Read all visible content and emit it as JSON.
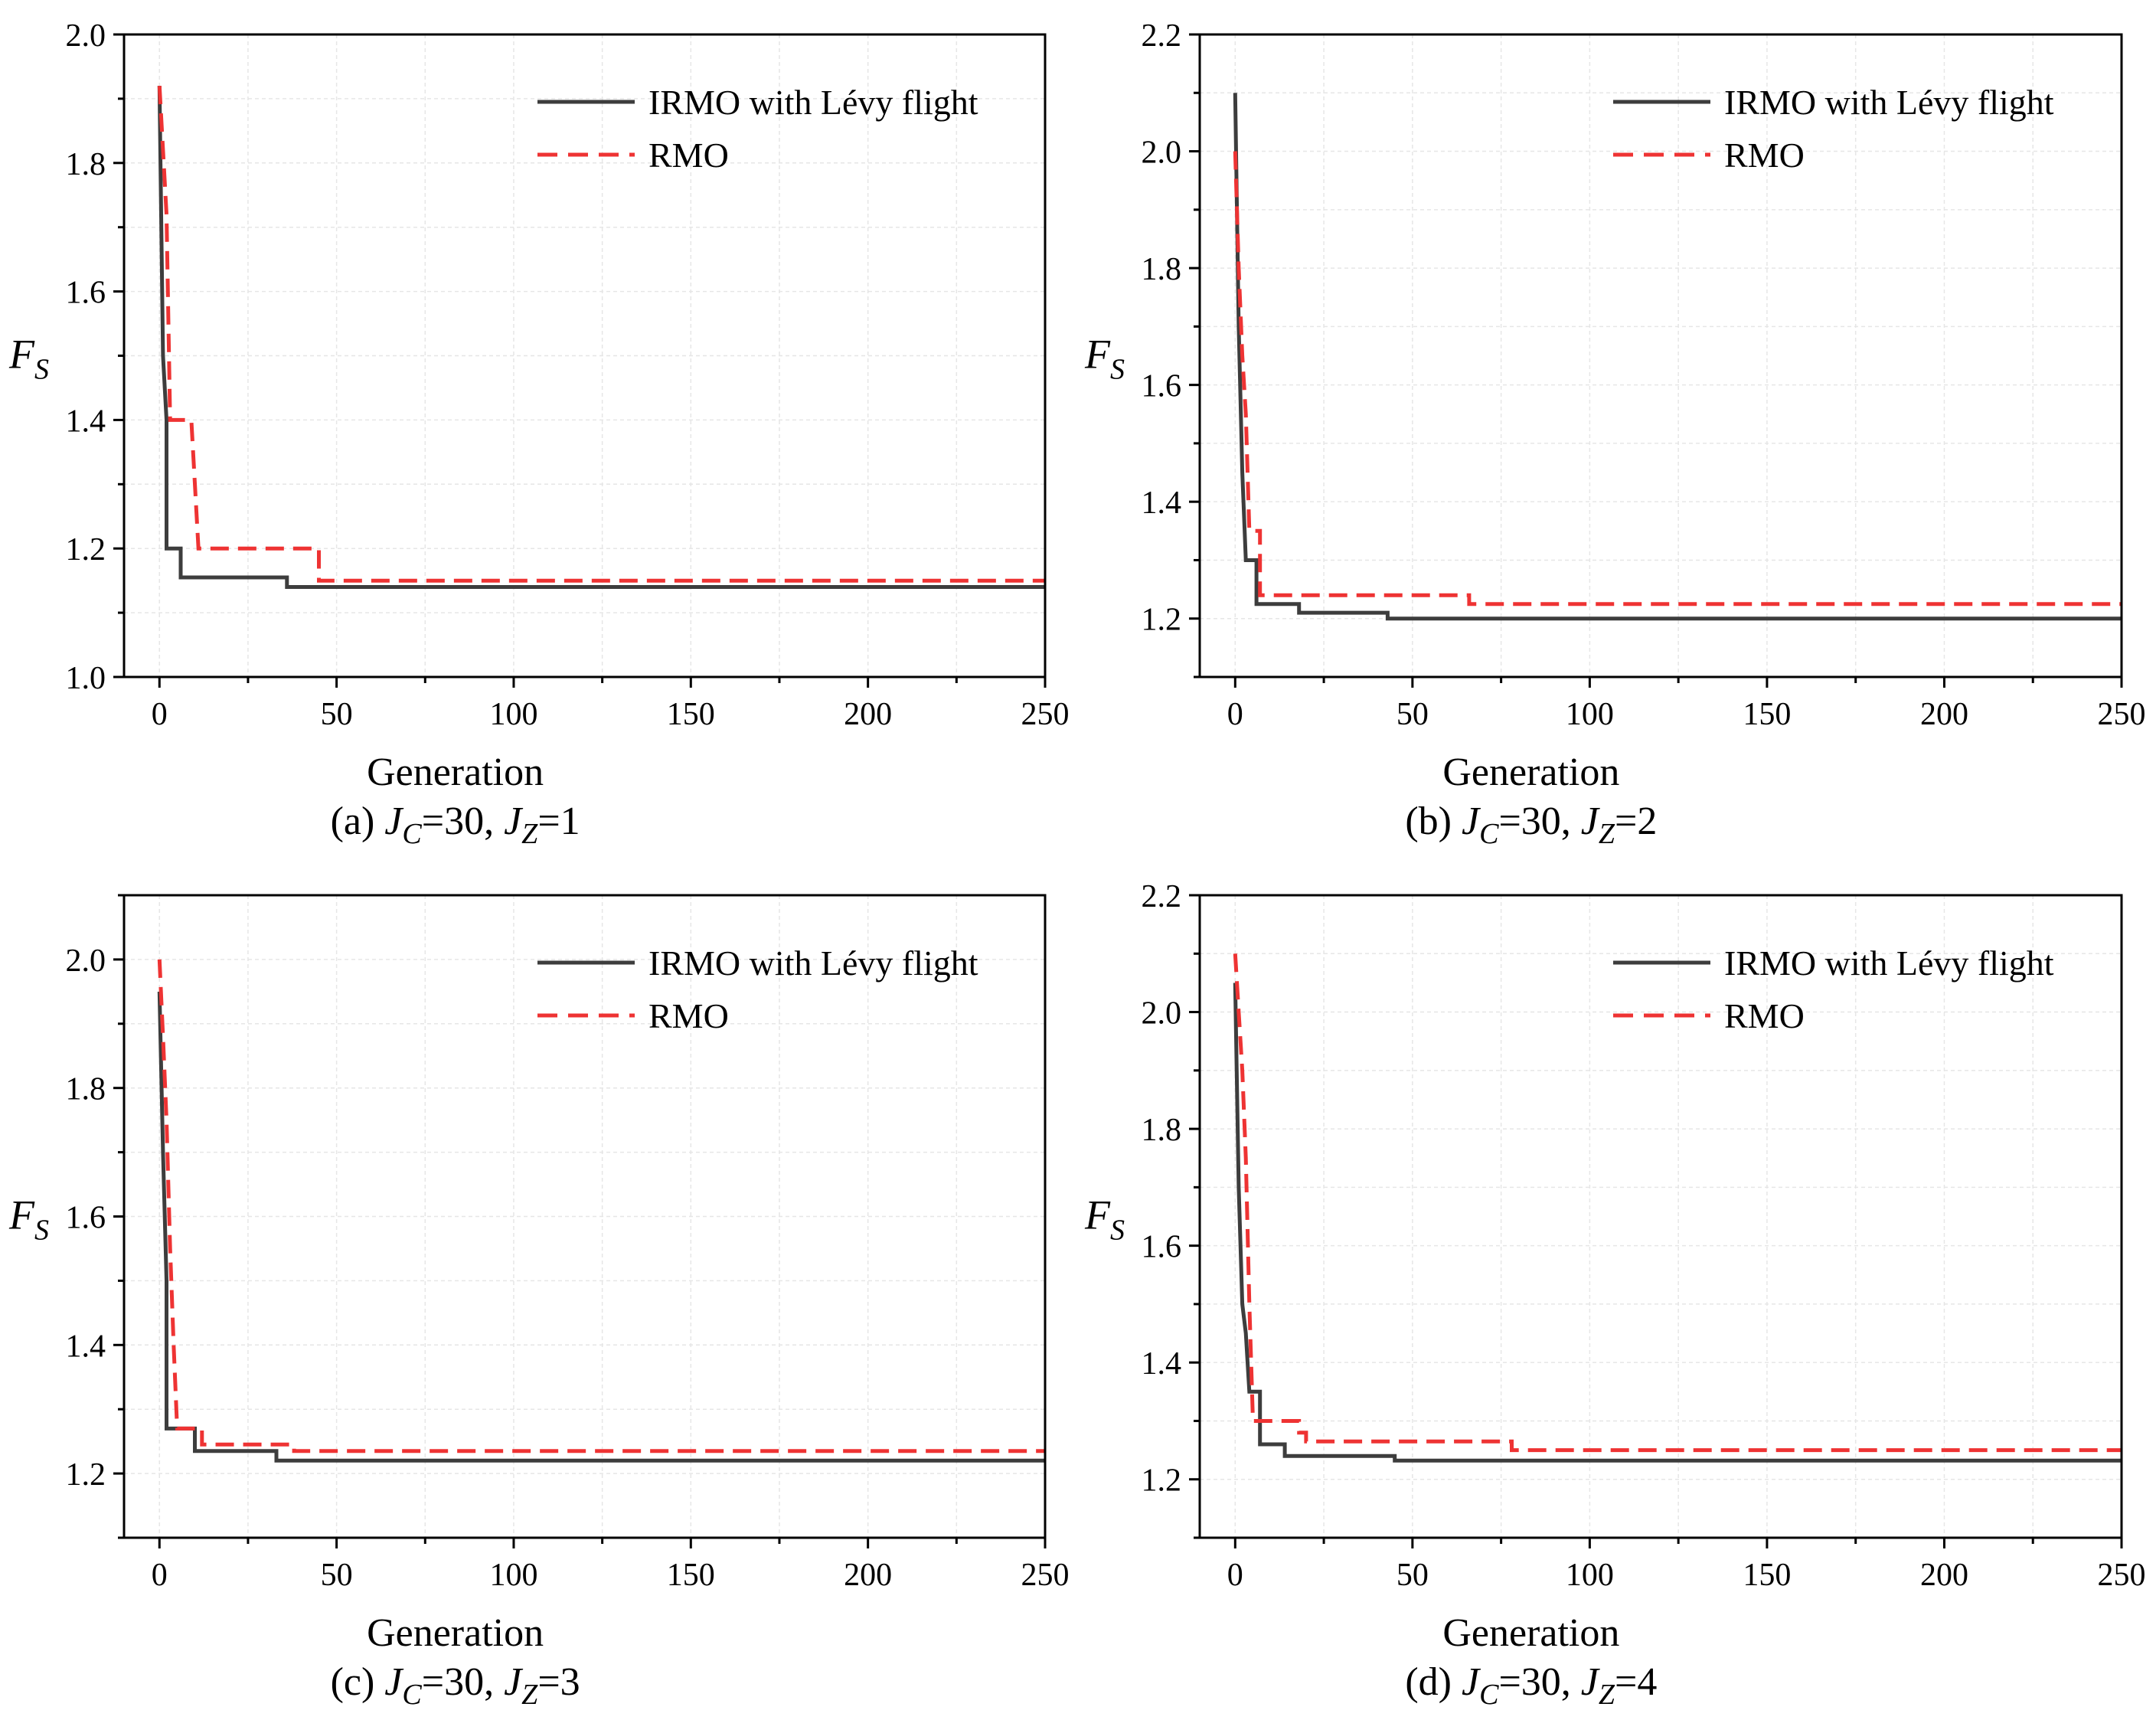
{
  "chart_data": [
    {
      "type": "line",
      "caption": {
        "prefix": "(a)",
        "jc_label": "J",
        "jc_sub": "C",
        "jc_value": "=30, ",
        "jz_label": "J",
        "jz_sub": "Z",
        "jz_value": "=1"
      },
      "xlabel": "Generation",
      "ylabel": {
        "main": "F",
        "sub": "S"
      },
      "xlim": [
        -10,
        250
      ],
      "ylim": [
        1.0,
        2.0
      ],
      "xticks": [
        0,
        50,
        100,
        150,
        200,
        250
      ],
      "yticks": [
        1.0,
        1.2,
        1.4,
        1.6,
        1.8,
        2.0
      ],
      "ytick_labels": [
        "1.0",
        "1.2",
        "1.4",
        "1.6",
        "1.8",
        "2.0"
      ],
      "grid": true,
      "legend_position": "top-right",
      "series": [
        {
          "name": "IRMO with Lévy flight",
          "color": "#3d3d3d",
          "style": "solid",
          "x": [
            0,
            1,
            2,
            2,
            4,
            4,
            6,
            6,
            36,
            36,
            250
          ],
          "y": [
            1.92,
            1.5,
            1.4,
            1.2,
            1.2,
            1.2,
            1.2,
            1.155,
            1.155,
            1.14,
            1.14
          ]
        },
        {
          "name": "RMO",
          "color": "#ee3333",
          "style": "dashed",
          "x": [
            0,
            1,
            2,
            3,
            4,
            9,
            9,
            11,
            11,
            45,
            45,
            47,
            47,
            250
          ],
          "y": [
            1.92,
            1.82,
            1.72,
            1.4,
            1.4,
            1.4,
            1.4,
            1.2,
            1.2,
            1.2,
            1.15,
            1.15,
            1.15,
            1.15
          ]
        }
      ]
    },
    {
      "type": "line",
      "caption": {
        "prefix": "(b)",
        "jc_label": "J",
        "jc_sub": "C",
        "jc_value": "=30, ",
        "jz_label": "J",
        "jz_sub": "Z",
        "jz_value": "=2"
      },
      "xlabel": "Generation",
      "ylabel": {
        "main": "F",
        "sub": "S"
      },
      "xlim": [
        -10,
        250
      ],
      "ylim": [
        1.1,
        2.2
      ],
      "xticks": [
        0,
        50,
        100,
        150,
        200,
        250
      ],
      "yticks": [
        1.2,
        1.4,
        1.6,
        1.8,
        2.0,
        2.2
      ],
      "ytick_labels": [
        "1.2",
        "1.4",
        "1.6",
        "1.8",
        "2.0",
        "2.2"
      ],
      "grid": true,
      "legend_position": "top-right",
      "series": [
        {
          "name": "IRMO with Lévy flight",
          "color": "#3d3d3d",
          "style": "solid",
          "x": [
            0,
            1,
            2,
            3,
            3,
            6,
            6,
            18,
            18,
            43,
            43,
            250
          ],
          "y": [
            2.1,
            1.7,
            1.45,
            1.3,
            1.3,
            1.3,
            1.225,
            1.225,
            1.21,
            1.21,
            1.2,
            1.2
          ]
        },
        {
          "name": "RMO",
          "color": "#ee3333",
          "style": "dashed",
          "x": [
            0,
            1,
            2,
            3,
            4,
            4,
            7,
            7,
            66,
            66,
            250
          ],
          "y": [
            2.0,
            1.8,
            1.65,
            1.55,
            1.35,
            1.35,
            1.35,
            1.24,
            1.24,
            1.225,
            1.225
          ]
        }
      ]
    },
    {
      "type": "line",
      "caption": {
        "prefix": "(c)",
        "jc_label": "J",
        "jc_sub": "C",
        "jc_value": "=30, ",
        "jz_label": "J",
        "jz_sub": "Z",
        "jz_value": "=3"
      },
      "xlabel": "Generation",
      "ylabel": {
        "main": "F",
        "sub": "S"
      },
      "xlim": [
        -10,
        250
      ],
      "ylim": [
        1.1,
        2.1
      ],
      "xticks": [
        0,
        50,
        100,
        150,
        200,
        250
      ],
      "yticks": [
        1.2,
        1.4,
        1.6,
        1.8,
        2.0
      ],
      "ytick_labels": [
        "1.2",
        "1.4",
        "1.6",
        "1.8",
        "2.0"
      ],
      "grid": true,
      "legend_position": "top-right",
      "series": [
        {
          "name": "IRMO with Lévy flight",
          "color": "#3d3d3d",
          "style": "solid",
          "x": [
            0,
            1,
            2,
            2,
            10,
            10,
            33,
            33,
            250
          ],
          "y": [
            1.95,
            1.7,
            1.5,
            1.27,
            1.27,
            1.235,
            1.235,
            1.22,
            1.22
          ]
        },
        {
          "name": "RMO",
          "color": "#ee3333",
          "style": "dashed",
          "x": [
            0,
            1,
            2,
            3,
            4,
            5,
            5,
            12,
            12,
            38,
            38,
            250
          ],
          "y": [
            2.0,
            1.88,
            1.75,
            1.55,
            1.4,
            1.27,
            1.27,
            1.27,
            1.245,
            1.245,
            1.235,
            1.235
          ]
        }
      ]
    },
    {
      "type": "line",
      "caption": {
        "prefix": "(d)",
        "jc_label": "J",
        "jc_sub": "C",
        "jc_value": "=30, ",
        "jz_label": "J",
        "jz_sub": "Z",
        "jz_value": "=4"
      },
      "xlabel": "Generation",
      "ylabel": {
        "main": "F",
        "sub": "S"
      },
      "xlim": [
        -10,
        250
      ],
      "ylim": [
        1.1,
        2.2
      ],
      "xticks": [
        0,
        50,
        100,
        150,
        200,
        250
      ],
      "yticks": [
        1.2,
        1.4,
        1.6,
        1.8,
        2.0,
        2.2
      ],
      "ytick_labels": [
        "1.2",
        "1.4",
        "1.6",
        "1.8",
        "2.0",
        "2.2"
      ],
      "grid": true,
      "legend_position": "top-right",
      "series": [
        {
          "name": "IRMO with Lévy flight",
          "color": "#3d3d3d",
          "style": "solid",
          "x": [
            0,
            1,
            2,
            3,
            4,
            4,
            7,
            7,
            9,
            9,
            14,
            14,
            45,
            45,
            250
          ],
          "y": [
            2.05,
            1.7,
            1.5,
            1.45,
            1.35,
            1.35,
            1.35,
            1.26,
            1.26,
            1.26,
            1.26,
            1.24,
            1.24,
            1.232,
            1.232
          ]
        },
        {
          "name": "RMO",
          "color": "#ee3333",
          "style": "dashed",
          "x": [
            0,
            1,
            2,
            3,
            4,
            5,
            5,
            18,
            18,
            20,
            20,
            78,
            78,
            250
          ],
          "y": [
            2.1,
            2.0,
            1.9,
            1.75,
            1.5,
            1.3,
            1.3,
            1.3,
            1.28,
            1.28,
            1.265,
            1.265,
            1.25,
            1.25
          ]
        }
      ]
    }
  ]
}
